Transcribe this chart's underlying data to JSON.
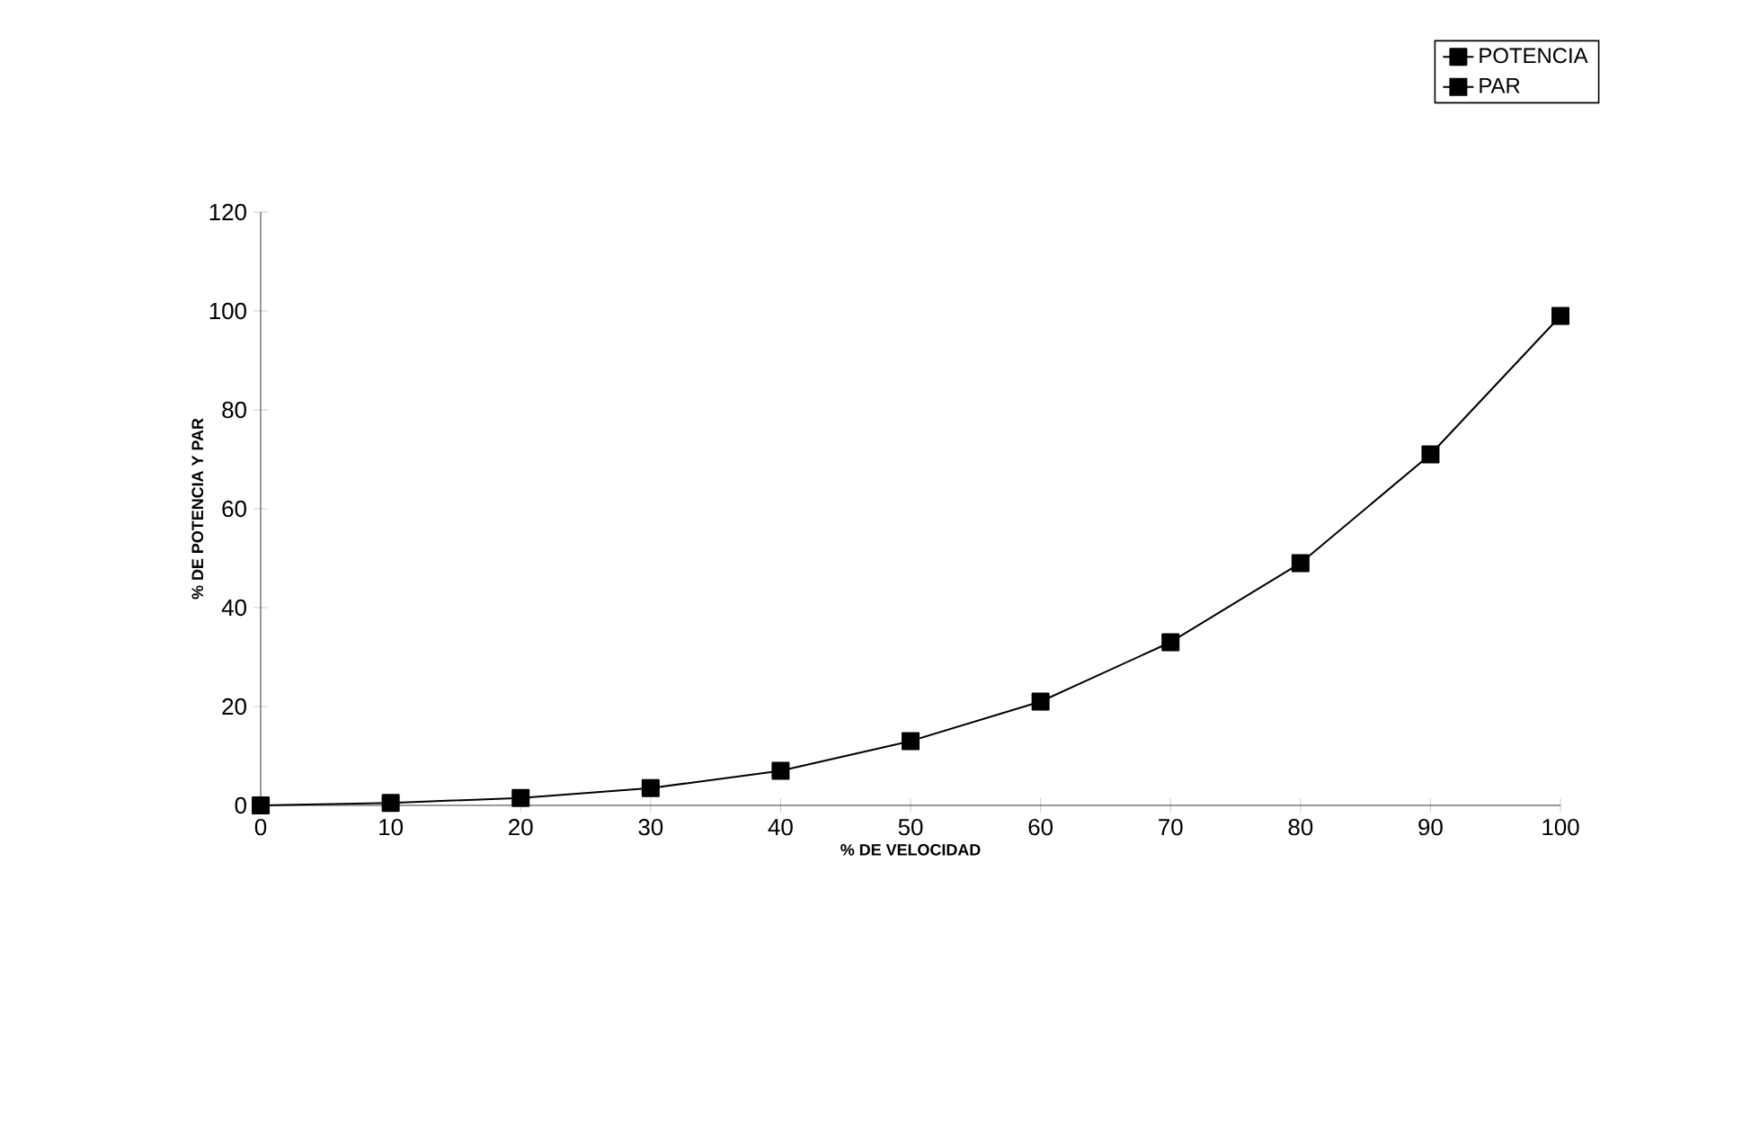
{
  "chart_data": {
    "type": "line",
    "xlabel": "% DE VELOCIDAD",
    "ylabel": "% DE POTENCIA Y PAR",
    "x": [
      0,
      10,
      20,
      30,
      40,
      50,
      60,
      70,
      80,
      90,
      100
    ],
    "series": [
      {
        "name": "POTENCIA",
        "color": "#000000",
        "values": [
          0,
          0.5,
          1.5,
          3.5,
          7,
          13,
          21,
          33,
          49,
          71,
          99
        ]
      },
      {
        "name": "PAR",
        "color": "#000000",
        "values": [
          null,
          null,
          null,
          null,
          null,
          null,
          null,
          null,
          null,
          null,
          null
        ]
      }
    ],
    "xlim": [
      0,
      100
    ],
    "xticks": [
      0,
      10,
      20,
      30,
      40,
      50,
      60,
      70,
      80,
      90,
      100
    ],
    "ylim": [
      0,
      120
    ],
    "yticks": [
      0,
      20,
      40,
      60,
      80,
      100,
      120
    ],
    "grid": false,
    "legend": "top right",
    "marker": "square",
    "line_style": "solid"
  }
}
